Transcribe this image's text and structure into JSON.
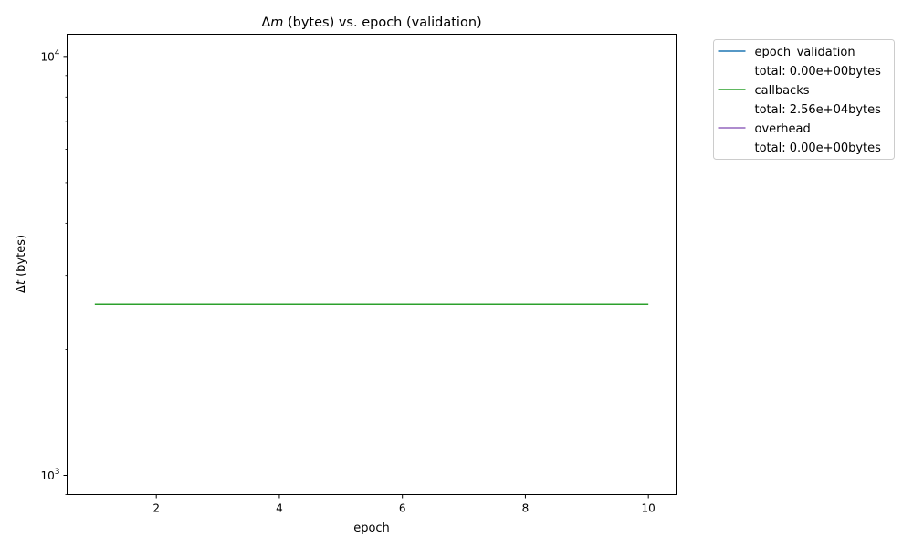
{
  "chart_data": {
    "type": "line",
    "title": {
      "delta": "Δ",
      "var": "m",
      "rest": " (bytes) vs. epoch (validation)"
    },
    "xlabel": "epoch",
    "ylabel": {
      "delta": "Δ",
      "var": "t",
      "rest": " (bytes)"
    },
    "x_scale": "linear",
    "y_scale": "log",
    "xlim": [
      0.55,
      10.45
    ],
    "ylim": [
      900,
      11300
    ],
    "x_ticks": [
      2,
      4,
      6,
      8,
      10
    ],
    "y_ticks": [
      {
        "value": 1000,
        "base": "10",
        "exp": "3"
      },
      {
        "value": 10000,
        "base": "10",
        "exp": "4"
      }
    ],
    "x": [
      1,
      2,
      3,
      4,
      5,
      6,
      7,
      8,
      9,
      10
    ],
    "series": [
      {
        "name": "epoch_validation",
        "color": "#1f77b4",
        "values": [
          0,
          0,
          0,
          0,
          0,
          0,
          0,
          0,
          0,
          0
        ],
        "total": "total: 0.00e+00bytes"
      },
      {
        "name": "callbacks",
        "color": "#2ca02c",
        "values": [
          2560,
          2560,
          2560,
          2560,
          2560,
          2560,
          2560,
          2560,
          2560,
          2560
        ],
        "total": "total: 2.56e+04bytes"
      },
      {
        "name": "overhead",
        "color": "#9467bd",
        "values": [
          0,
          0,
          0,
          0,
          0,
          0,
          0,
          0,
          0,
          0
        ],
        "total": "total: 0.00e+00bytes"
      }
    ],
    "legend_position": "outside-upper-right",
    "grid": false
  }
}
